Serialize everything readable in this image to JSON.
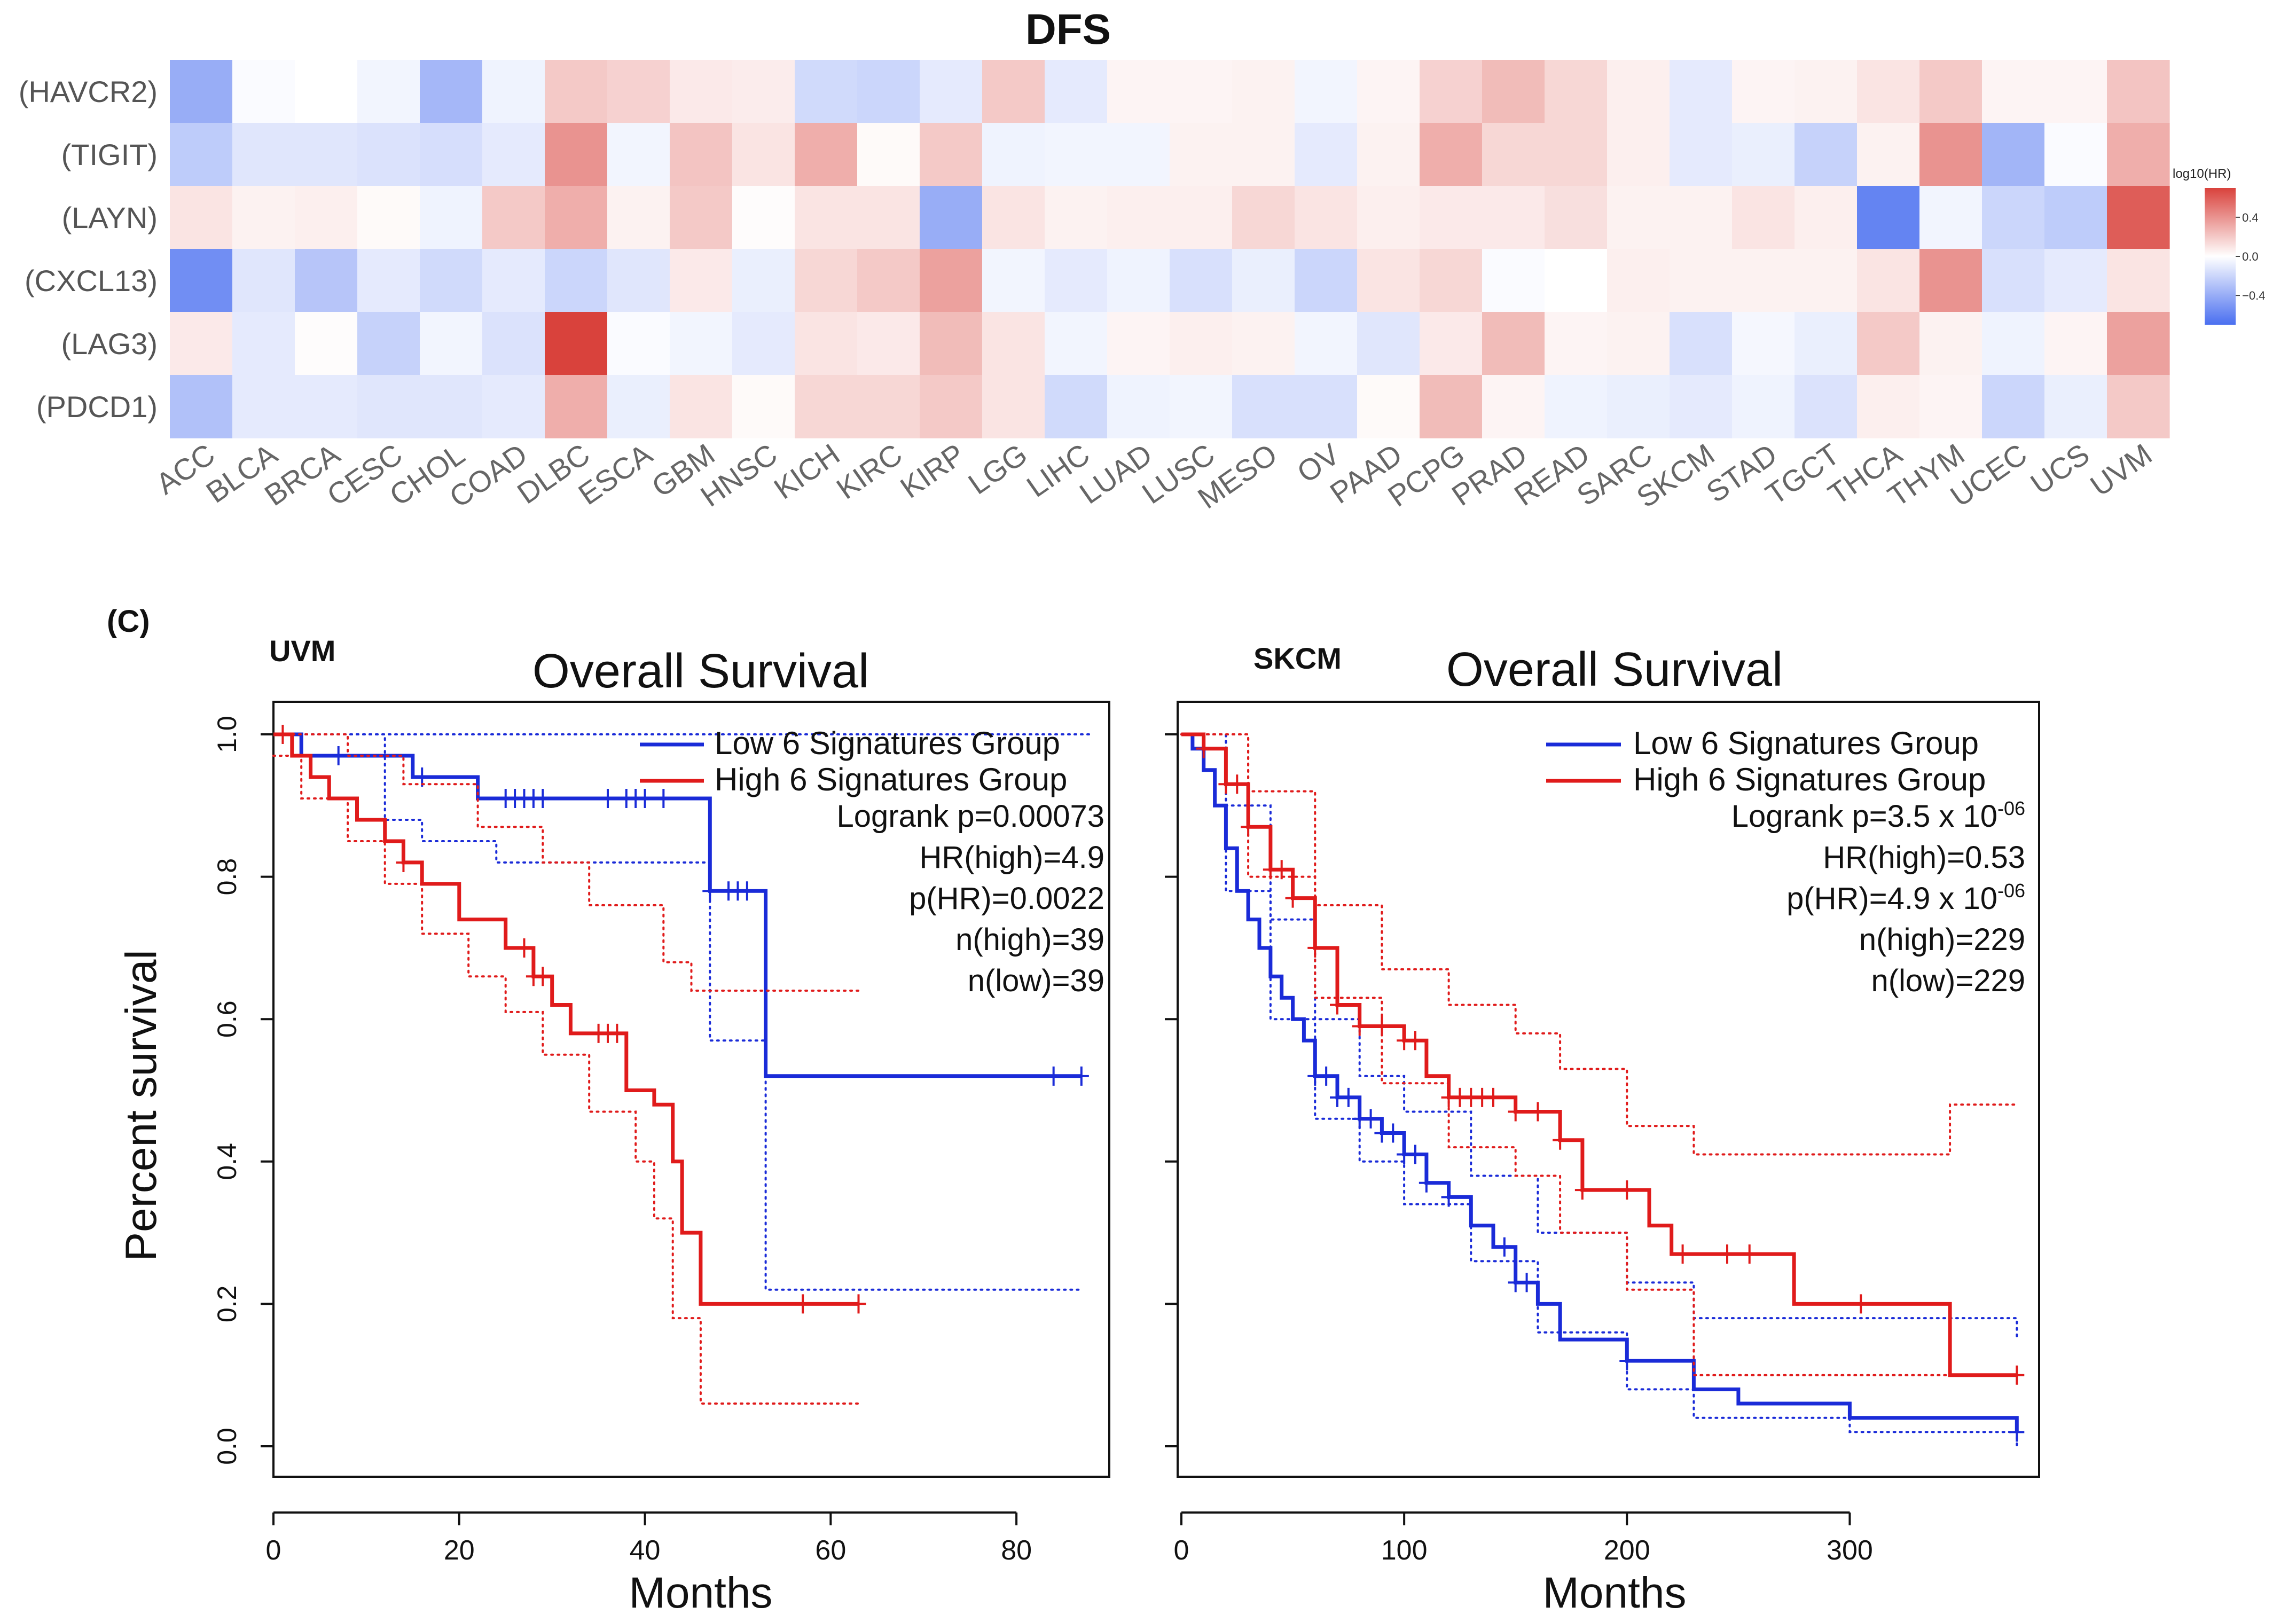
{
  "figure": {
    "panel_label": "(C)"
  },
  "chart_data": [
    {
      "type": "heatmap",
      "title": "DFS",
      "rows": [
        "(HAVCR2)",
        "(TIGIT)",
        "(LAYN)",
        "(CXCL13)",
        "(LAG3)",
        "(PDCD1)"
      ],
      "columns": [
        "ACC",
        "BLCA",
        "BRCA",
        "CESC",
        "CHOL",
        "COAD",
        "DLBC",
        "ESCA",
        "GBM",
        "HNSC",
        "KICH",
        "KIRC",
        "KIRP",
        "LGG",
        "LIHC",
        "LUAD",
        "LUSC",
        "MESO",
        "OV",
        "PAAD",
        "PCPG",
        "PRAD",
        "READ",
        "SARC",
        "SKCM",
        "STAD",
        "TGCT",
        "THCA",
        "THYM",
        "UCEC",
        "UCS",
        "UVM"
      ],
      "values": [
        [
          -0.4,
          -0.02,
          0.0,
          -0.05,
          -0.35,
          -0.06,
          0.2,
          0.17,
          0.08,
          0.07,
          -0.18,
          -0.2,
          -0.1,
          0.2,
          -0.1,
          0.04,
          0.04,
          0.05,
          -0.05,
          0.04,
          0.17,
          0.25,
          0.15,
          0.06,
          -0.1,
          0.04,
          0.05,
          0.1,
          0.2,
          0.04,
          0.04,
          0.22
        ],
        [
          -0.25,
          -0.12,
          -0.12,
          -0.14,
          -0.16,
          -0.1,
          0.4,
          -0.05,
          0.22,
          0.1,
          0.3,
          0.02,
          0.2,
          -0.06,
          -0.05,
          -0.05,
          0.05,
          0.05,
          -0.1,
          0.05,
          0.3,
          0.15,
          0.15,
          0.06,
          -0.1,
          -0.08,
          -0.22,
          0.05,
          0.4,
          -0.36,
          -0.02,
          0.3
        ],
        [
          0.1,
          0.05,
          0.06,
          0.02,
          -0.06,
          0.2,
          0.3,
          0.05,
          0.2,
          0.01,
          0.1,
          0.1,
          -0.4,
          0.1,
          0.05,
          0.06,
          0.06,
          0.15,
          0.1,
          0.06,
          0.08,
          0.08,
          0.12,
          0.05,
          0.05,
          0.1,
          0.06,
          -0.6,
          -0.05,
          -0.2,
          -0.25,
          0.6
        ],
        [
          -0.55,
          -0.12,
          -0.28,
          -0.1,
          -0.18,
          -0.1,
          -0.2,
          -0.12,
          0.08,
          -0.08,
          0.15,
          0.2,
          0.35,
          -0.05,
          -0.1,
          -0.06,
          -0.15,
          -0.08,
          -0.2,
          0.1,
          0.15,
          -0.02,
          0.0,
          0.06,
          0.05,
          0.05,
          0.05,
          0.1,
          0.4,
          -0.15,
          -0.1,
          0.1
        ],
        [
          0.08,
          -0.1,
          0.01,
          -0.22,
          -0.05,
          -0.14,
          0.7,
          -0.02,
          -0.05,
          -0.1,
          0.1,
          0.08,
          0.25,
          0.1,
          -0.05,
          0.04,
          0.06,
          0.05,
          -0.05,
          -0.12,
          0.08,
          0.25,
          0.04,
          0.05,
          -0.15,
          -0.04,
          -0.08,
          0.2,
          0.05,
          -0.06,
          0.04,
          0.35
        ],
        [
          -0.3,
          -0.1,
          -0.1,
          -0.12,
          -0.12,
          -0.1,
          0.3,
          -0.08,
          0.1,
          0.02,
          0.15,
          0.15,
          0.2,
          0.1,
          -0.18,
          -0.06,
          -0.05,
          -0.15,
          -0.15,
          0.02,
          0.25,
          0.04,
          -0.06,
          -0.08,
          -0.1,
          -0.06,
          -0.14,
          0.06,
          0.04,
          -0.2,
          -0.08,
          0.2
        ]
      ],
      "legend": {
        "title": "log10(HR)",
        "ticks": [
          "0.4",
          "0.0",
          "−0.4"
        ],
        "tick_values": [
          0.4,
          0.0,
          -0.4
        ],
        "range": [
          -0.7,
          0.7
        ],
        "colors": {
          "low": "#4a6ff0",
          "mid": "#ffffff",
          "high": "#d9423c"
        }
      }
    },
    {
      "type": "line",
      "subtype": "kaplan-meier",
      "tag": "UVM",
      "title": "Overall Survival",
      "xlabel": "Months",
      "ylabel": "Percent survival",
      "xlim": [
        0,
        90
      ],
      "ylim": [
        0,
        1.0
      ],
      "xticks": [
        0,
        20,
        40,
        60,
        80
      ],
      "yticks": [
        0.0,
        0.2,
        0.4,
        0.6,
        0.8,
        1.0
      ],
      "ytick_labels": [
        "0.0",
        "0.2",
        "0.4",
        "0.6",
        "0.8",
        "1.0"
      ],
      "legend": [
        "Low 6 Signatures Group",
        "High 6 Signatures Group"
      ],
      "stats": [
        "Logrank p=0.00073",
        "HR(high)=4.9",
        "p(HR)=0.0022",
        "n(high)=39",
        "n(low)=39"
      ],
      "series": [
        {
          "name": "Low 6 Signatures Group",
          "color": "#1a2bd8",
          "x": [
            0,
            3,
            15,
            22,
            47,
            53,
            87
          ],
          "y": [
            1.0,
            0.97,
            0.94,
            0.91,
            0.78,
            0.52,
            0.52
          ],
          "censor_x": [
            7,
            16,
            25,
            26,
            27,
            28,
            29,
            36,
            38,
            39,
            40,
            42,
            47,
            49,
            50,
            51,
            84,
            87
          ],
          "ci_upper": {
            "x": [
              0,
              88
            ],
            "y": [
              1.0,
              1.0
            ]
          },
          "ci_lower": {
            "x": [
              0,
              12,
              16,
              24,
              47,
              53,
              87
            ],
            "y": [
              1.0,
              0.88,
              0.85,
              0.82,
              0.57,
              0.22,
              0.22
            ]
          }
        },
        {
          "name": "High 6 Signatures Group",
          "color": "#e01b1b",
          "x": [
            0,
            2,
            4,
            6,
            9,
            12,
            14,
            16,
            20,
            25,
            28,
            30,
            32,
            38,
            41,
            43,
            44,
            46,
            63
          ],
          "y": [
            1.0,
            0.97,
            0.94,
            0.91,
            0.88,
            0.85,
            0.82,
            0.79,
            0.74,
            0.7,
            0.66,
            0.62,
            0.58,
            0.5,
            0.48,
            0.4,
            0.3,
            0.2,
            0.2
          ],
          "censor_x": [
            1,
            14,
            27,
            28,
            29,
            35,
            36,
            37,
            57,
            63
          ],
          "ci_upper": {
            "x": [
              0,
              4,
              8,
              14,
              22,
              29,
              34,
              42,
              45,
              46,
              63
            ],
            "y": [
              1.0,
              1.0,
              0.97,
              0.93,
              0.87,
              0.82,
              0.76,
              0.68,
              0.64,
              0.64,
              0.64
            ]
          },
          "ci_lower": {
            "x": [
              0,
              3,
              8,
              12,
              16,
              21,
              25,
              29,
              34,
              39,
              41,
              43,
              46,
              63
            ],
            "y": [
              0.97,
              0.91,
              0.85,
              0.79,
              0.72,
              0.66,
              0.61,
              0.55,
              0.47,
              0.4,
              0.32,
              0.18,
              0.06,
              0.06
            ]
          }
        }
      ]
    },
    {
      "type": "line",
      "subtype": "kaplan-meier",
      "tag": "SKCM",
      "title": "Overall Survival",
      "xlabel": "Months",
      "ylabel": "",
      "xlim": [
        0,
        385
      ],
      "ylim": [
        0,
        1.0
      ],
      "xticks": [
        0,
        100,
        200,
        300
      ],
      "yticks": [
        0.0,
        0.2,
        0.4,
        0.6,
        0.8,
        1.0
      ],
      "legend": [
        "Low 6 Signatures Group",
        "High 6 Signatures Group"
      ],
      "stats": [
        {
          "text": "Logrank p=3.5 x 10",
          "sup": "-06"
        },
        {
          "text": "HR(high)=0.53",
          "sup": ""
        },
        {
          "text": "p(HR)=4.9 x 10",
          "sup": "-06"
        },
        {
          "text": "n(high)=229",
          "sup": ""
        },
        {
          "text": "n(low)=229",
          "sup": ""
        }
      ],
      "series": [
        {
          "name": "Low 6 Signatures Group",
          "color": "#1a2bd8",
          "x": [
            0,
            5,
            10,
            15,
            20,
            25,
            30,
            35,
            40,
            45,
            50,
            55,
            60,
            70,
            80,
            90,
            100,
            110,
            120,
            130,
            140,
            150,
            160,
            170,
            200,
            230,
            250,
            300,
            375
          ],
          "y": [
            1.0,
            0.98,
            0.95,
            0.9,
            0.84,
            0.78,
            0.74,
            0.7,
            0.66,
            0.63,
            0.6,
            0.57,
            0.52,
            0.49,
            0.46,
            0.44,
            0.41,
            0.37,
            0.35,
            0.31,
            0.28,
            0.23,
            0.2,
            0.15,
            0.12,
            0.08,
            0.06,
            0.04,
            0.02
          ],
          "censor_x": [
            60,
            65,
            70,
            75,
            80,
            85,
            90,
            95,
            100,
            105,
            110,
            120,
            145,
            150,
            155,
            200,
            375
          ],
          "ci_upper": {
            "x": [
              0,
              20,
              40,
              60,
              80,
              100,
              130,
              160,
              200,
              230,
              375
            ],
            "y": [
              1.0,
              0.9,
              0.74,
              0.6,
              0.52,
              0.47,
              0.38,
              0.3,
              0.23,
              0.18,
              0.15
            ]
          },
          "ci_lower": {
            "x": [
              0,
              20,
              40,
              60,
              80,
              100,
              130,
              160,
              200,
              230,
              300,
              375
            ],
            "y": [
              1.0,
              0.78,
              0.6,
              0.46,
              0.4,
              0.34,
              0.26,
              0.16,
              0.08,
              0.04,
              0.02,
              0.0
            ]
          }
        },
        {
          "name": "High 6 Signatures Group",
          "color": "#e01b1b",
          "x": [
            0,
            10,
            20,
            30,
            40,
            50,
            60,
            70,
            80,
            100,
            110,
            120,
            150,
            170,
            180,
            210,
            220,
            275,
            345,
            375
          ],
          "y": [
            1.0,
            0.98,
            0.93,
            0.87,
            0.81,
            0.77,
            0.7,
            0.62,
            0.59,
            0.57,
            0.52,
            0.49,
            0.47,
            0.43,
            0.36,
            0.31,
            0.27,
            0.2,
            0.1,
            0.1
          ],
          "censor_x": [
            10,
            20,
            25,
            30,
            40,
            45,
            50,
            60,
            70,
            80,
            90,
            100,
            105,
            120,
            125,
            130,
            135,
            140,
            150,
            160,
            170,
            180,
            200,
            225,
            245,
            255,
            305,
            375
          ],
          "ci_upper": {
            "x": [
              0,
              30,
              60,
              90,
              120,
              150,
              170,
              200,
              230,
              345,
              375
            ],
            "y": [
              1.0,
              0.92,
              0.76,
              0.67,
              0.62,
              0.58,
              0.53,
              0.45,
              0.41,
              0.48,
              0.48
            ]
          },
          "ci_lower": {
            "x": [
              0,
              30,
              60,
              90,
              120,
              150,
              170,
              200,
              230,
              375
            ],
            "y": [
              1.0,
              0.8,
              0.63,
              0.51,
              0.42,
              0.38,
              0.3,
              0.22,
              0.1,
              0.1
            ]
          }
        }
      ]
    }
  ]
}
